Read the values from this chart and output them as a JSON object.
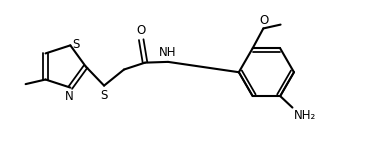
{
  "background_color": "#ffffff",
  "line_color": "#000000",
  "line_width": 1.5,
  "font_size": 8.5,
  "fig_width": 3.72,
  "fig_height": 1.54,
  "dpi": 100,
  "xlim": [
    0,
    9.5
  ],
  "ylim": [
    0,
    3.95
  ]
}
